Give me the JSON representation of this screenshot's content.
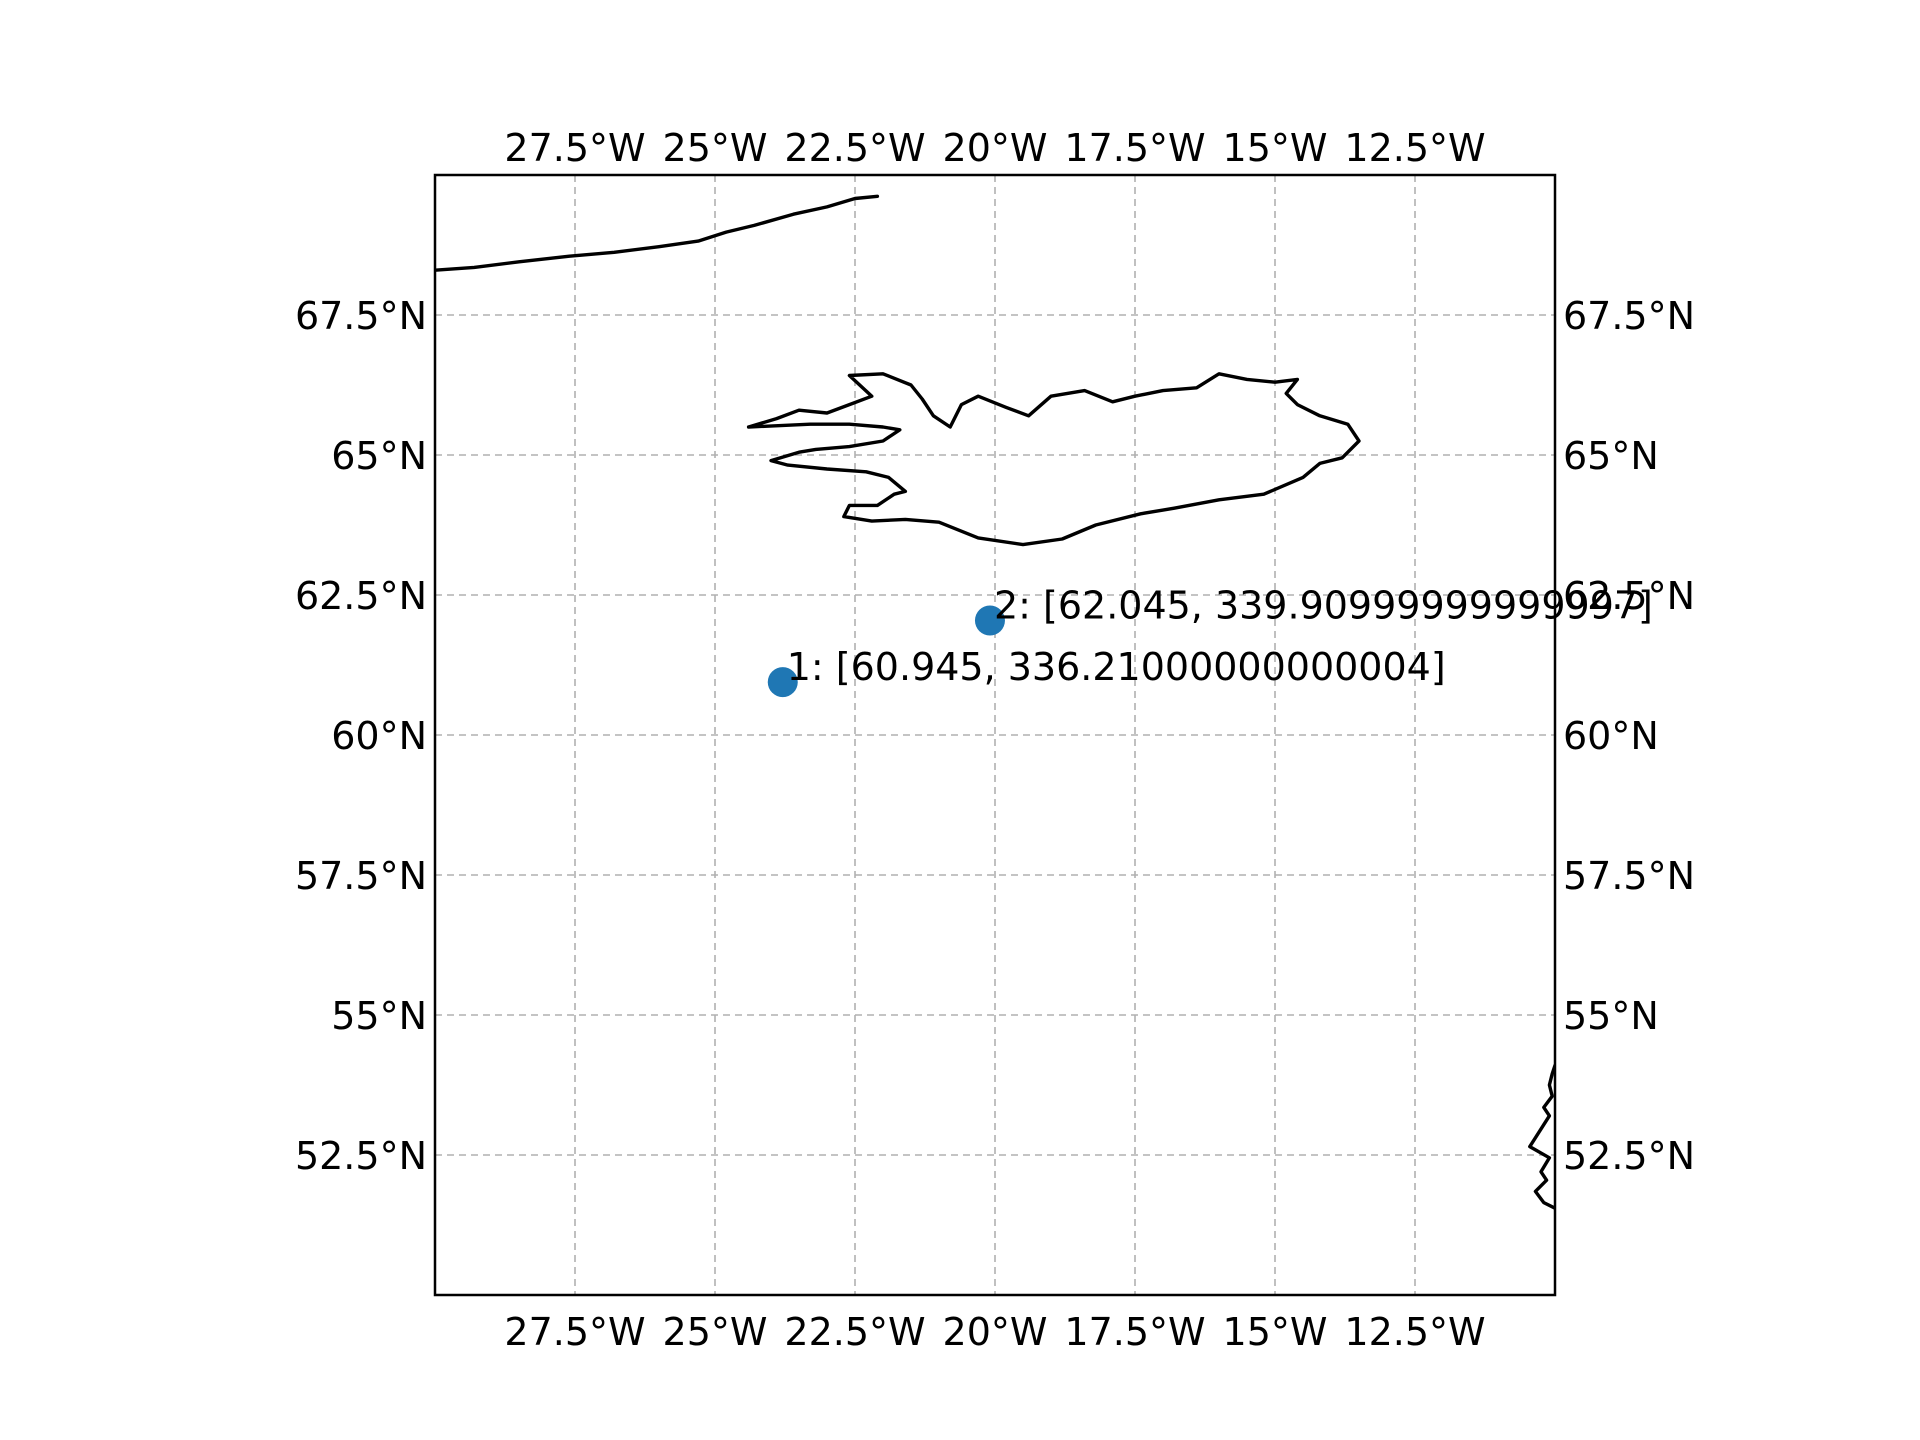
{
  "chart_data": {
    "type": "scatter",
    "projection": "PlateCarree",
    "xlim": [
      -30,
      -10
    ],
    "ylim": [
      50,
      70
    ],
    "grid": true,
    "gridline_style": "dashed",
    "x_ticks": [
      {
        "value": -27.5,
        "label": "27.5°W"
      },
      {
        "value": -25,
        "label": "25°W"
      },
      {
        "value": -22.5,
        "label": "22.5°W"
      },
      {
        "value": -20,
        "label": "20°W"
      },
      {
        "value": -17.5,
        "label": "17.5°W"
      },
      {
        "value": -15,
        "label": "15°W"
      },
      {
        "value": -12.5,
        "label": "12.5°W"
      }
    ],
    "y_ticks": [
      {
        "value": 52.5,
        "label": "52.5°N"
      },
      {
        "value": 55,
        "label": "55°N"
      },
      {
        "value": 57.5,
        "label": "57.5°N"
      },
      {
        "value": 60,
        "label": "60°N"
      },
      {
        "value": 62.5,
        "label": "62.5°N"
      },
      {
        "value": 65,
        "label": "65°N"
      },
      {
        "value": 67.5,
        "label": "67.5°N"
      }
    ],
    "points": [
      {
        "lat": 60.945,
        "lon": -23.79,
        "label": "1: [60.945, 336.21000000000004]"
      },
      {
        "lat": 62.045,
        "lon": -20.09,
        "label": "2: [62.045, 339.90999999999997]"
      }
    ],
    "point_color": "#1f77b4",
    "coastline_color": "#000000",
    "coastlines": {
      "greenland": [
        [
          -30,
          68.3
        ],
        [
          -29.3,
          68.35
        ],
        [
          -28.5,
          68.45
        ],
        [
          -27.6,
          68.55
        ],
        [
          -26.8,
          68.62
        ],
        [
          -26,
          68.72
        ],
        [
          -25.3,
          68.82
        ],
        [
          -24.8,
          68.98
        ],
        [
          -24.3,
          69.1
        ],
        [
          -23.6,
          69.3
        ],
        [
          -23,
          69.43
        ],
        [
          -22.5,
          69.58
        ],
        [
          -22.1,
          69.62
        ]
      ],
      "iceland": [
        [
          -24.4,
          65.5
        ],
        [
          -23.9,
          65.65
        ],
        [
          -23.5,
          65.8
        ],
        [
          -23,
          65.75
        ],
        [
          -22.6,
          65.9
        ],
        [
          -22.2,
          66.05
        ],
        [
          -22.6,
          66.42
        ],
        [
          -22,
          66.45
        ],
        [
          -21.5,
          66.25
        ],
        [
          -21.3,
          66
        ],
        [
          -21.1,
          65.7
        ],
        [
          -20.8,
          65.5
        ],
        [
          -20.6,
          65.9
        ],
        [
          -20.3,
          66.05
        ],
        [
          -19.8,
          65.85
        ],
        [
          -19.4,
          65.7
        ],
        [
          -19,
          66.05
        ],
        [
          -18.4,
          66.15
        ],
        [
          -17.9,
          65.95
        ],
        [
          -17.5,
          66.05
        ],
        [
          -17,
          66.15
        ],
        [
          -16.4,
          66.2
        ],
        [
          -16,
          66.45
        ],
        [
          -15.5,
          66.35
        ],
        [
          -15,
          66.3
        ],
        [
          -14.6,
          66.35
        ],
        [
          -14.8,
          66.1
        ],
        [
          -14.6,
          65.9
        ],
        [
          -14.2,
          65.7
        ],
        [
          -13.7,
          65.55
        ],
        [
          -13.5,
          65.25
        ],
        [
          -13.8,
          64.95
        ],
        [
          -14.2,
          64.85
        ],
        [
          -14.5,
          64.6
        ],
        [
          -15.2,
          64.3
        ],
        [
          -16,
          64.2
        ],
        [
          -16.8,
          64.05
        ],
        [
          -17.4,
          63.95
        ],
        [
          -18.2,
          63.75
        ],
        [
          -18.8,
          63.5
        ],
        [
          -19.5,
          63.4
        ],
        [
          -20.3,
          63.52
        ],
        [
          -21,
          63.8
        ],
        [
          -21.6,
          63.85
        ],
        [
          -22.2,
          63.82
        ],
        [
          -22.7,
          63.9
        ],
        [
          -22.6,
          64.1
        ],
        [
          -22.1,
          64.1
        ],
        [
          -21.8,
          64.3
        ],
        [
          -21.6,
          64.35
        ],
        [
          -21.9,
          64.6
        ],
        [
          -22.3,
          64.7
        ],
        [
          -23,
          64.75
        ],
        [
          -23.7,
          64.82
        ],
        [
          -24,
          64.9
        ],
        [
          -23.5,
          65.05
        ],
        [
          -23.2,
          65.1
        ],
        [
          -22.6,
          65.15
        ],
        [
          -22,
          65.25
        ],
        [
          -21.7,
          65.45
        ],
        [
          -22,
          65.5
        ],
        [
          -22.6,
          65.55
        ],
        [
          -23.3,
          65.55
        ],
        [
          -24.4,
          65.5
        ]
      ],
      "ireland": [
        [
          -10,
          54.1
        ],
        [
          -10.05,
          53.95
        ],
        [
          -10.1,
          53.75
        ],
        [
          -10.05,
          53.55
        ],
        [
          -10.2,
          53.35
        ],
        [
          -10.1,
          53.2
        ],
        [
          -10.45,
          52.65
        ],
        [
          -10.1,
          52.45
        ],
        [
          -10.25,
          52.2
        ],
        [
          -10.15,
          52.05
        ],
        [
          -10.35,
          51.85
        ],
        [
          -10.2,
          51.65
        ],
        [
          -10,
          51.55
        ]
      ]
    }
  }
}
